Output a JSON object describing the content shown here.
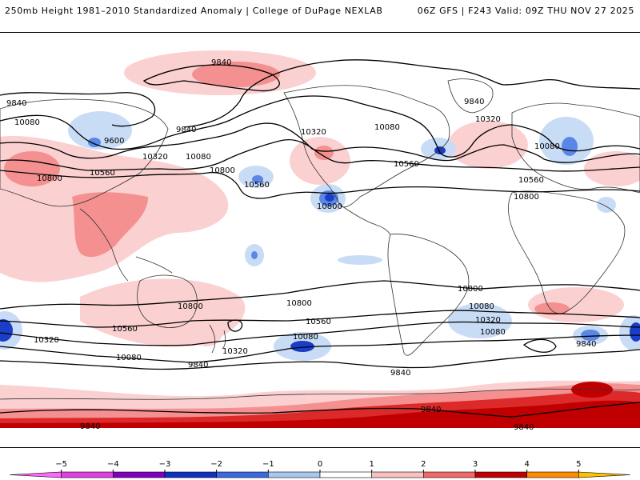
{
  "header": {
    "left_title": "250mb Height 1981–2010 Standardized Anomaly | College of DuPage NEXLAB",
    "right_title": "06Z GFS | F243 Valid: 09Z THU NOV 27 2025"
  },
  "map": {
    "variable": "250mb geopotential height (contours) and standardized anomaly (shading)",
    "contour_labels": [
      "9840",
      "9840",
      "10080",
      "9600",
      "9840",
      "10320",
      "10080",
      "10800",
      "10560",
      "10800",
      "10560",
      "10320",
      "10800",
      "10080",
      "10560",
      "9840",
      "10320",
      "10080",
      "10560",
      "10800",
      "10800",
      "10800",
      "10800",
      "10560",
      "10320",
      "10560",
      "10320",
      "10080",
      "10080",
      "9840",
      "10080",
      "9840",
      "9840",
      "9840",
      "10320",
      "10080",
      "9840",
      "9840"
    ]
  },
  "colorbar": {
    "ticks": [
      "−5",
      "−4",
      "−3",
      "−2",
      "−1",
      "0",
      "1",
      "2",
      "3",
      "4",
      "5"
    ],
    "colors": [
      "#e040e0",
      "#8000c0",
      "#1030c0",
      "#3a6ae0",
      "#a8c8f0",
      "#ffffff",
      "#ffffff",
      "#f8c0c0",
      "#f06868",
      "#c00000",
      "#ff8c00"
    ]
  },
  "anomaly_colors": {
    "neg3": "#1a3ec8",
    "neg2": "#5a86e6",
    "neg1": "#c8dcf6",
    "pos1": "#fbd0d0",
    "pos2": "#f49090",
    "pos3": "#dc2a2a",
    "pos4": "#c00000"
  }
}
